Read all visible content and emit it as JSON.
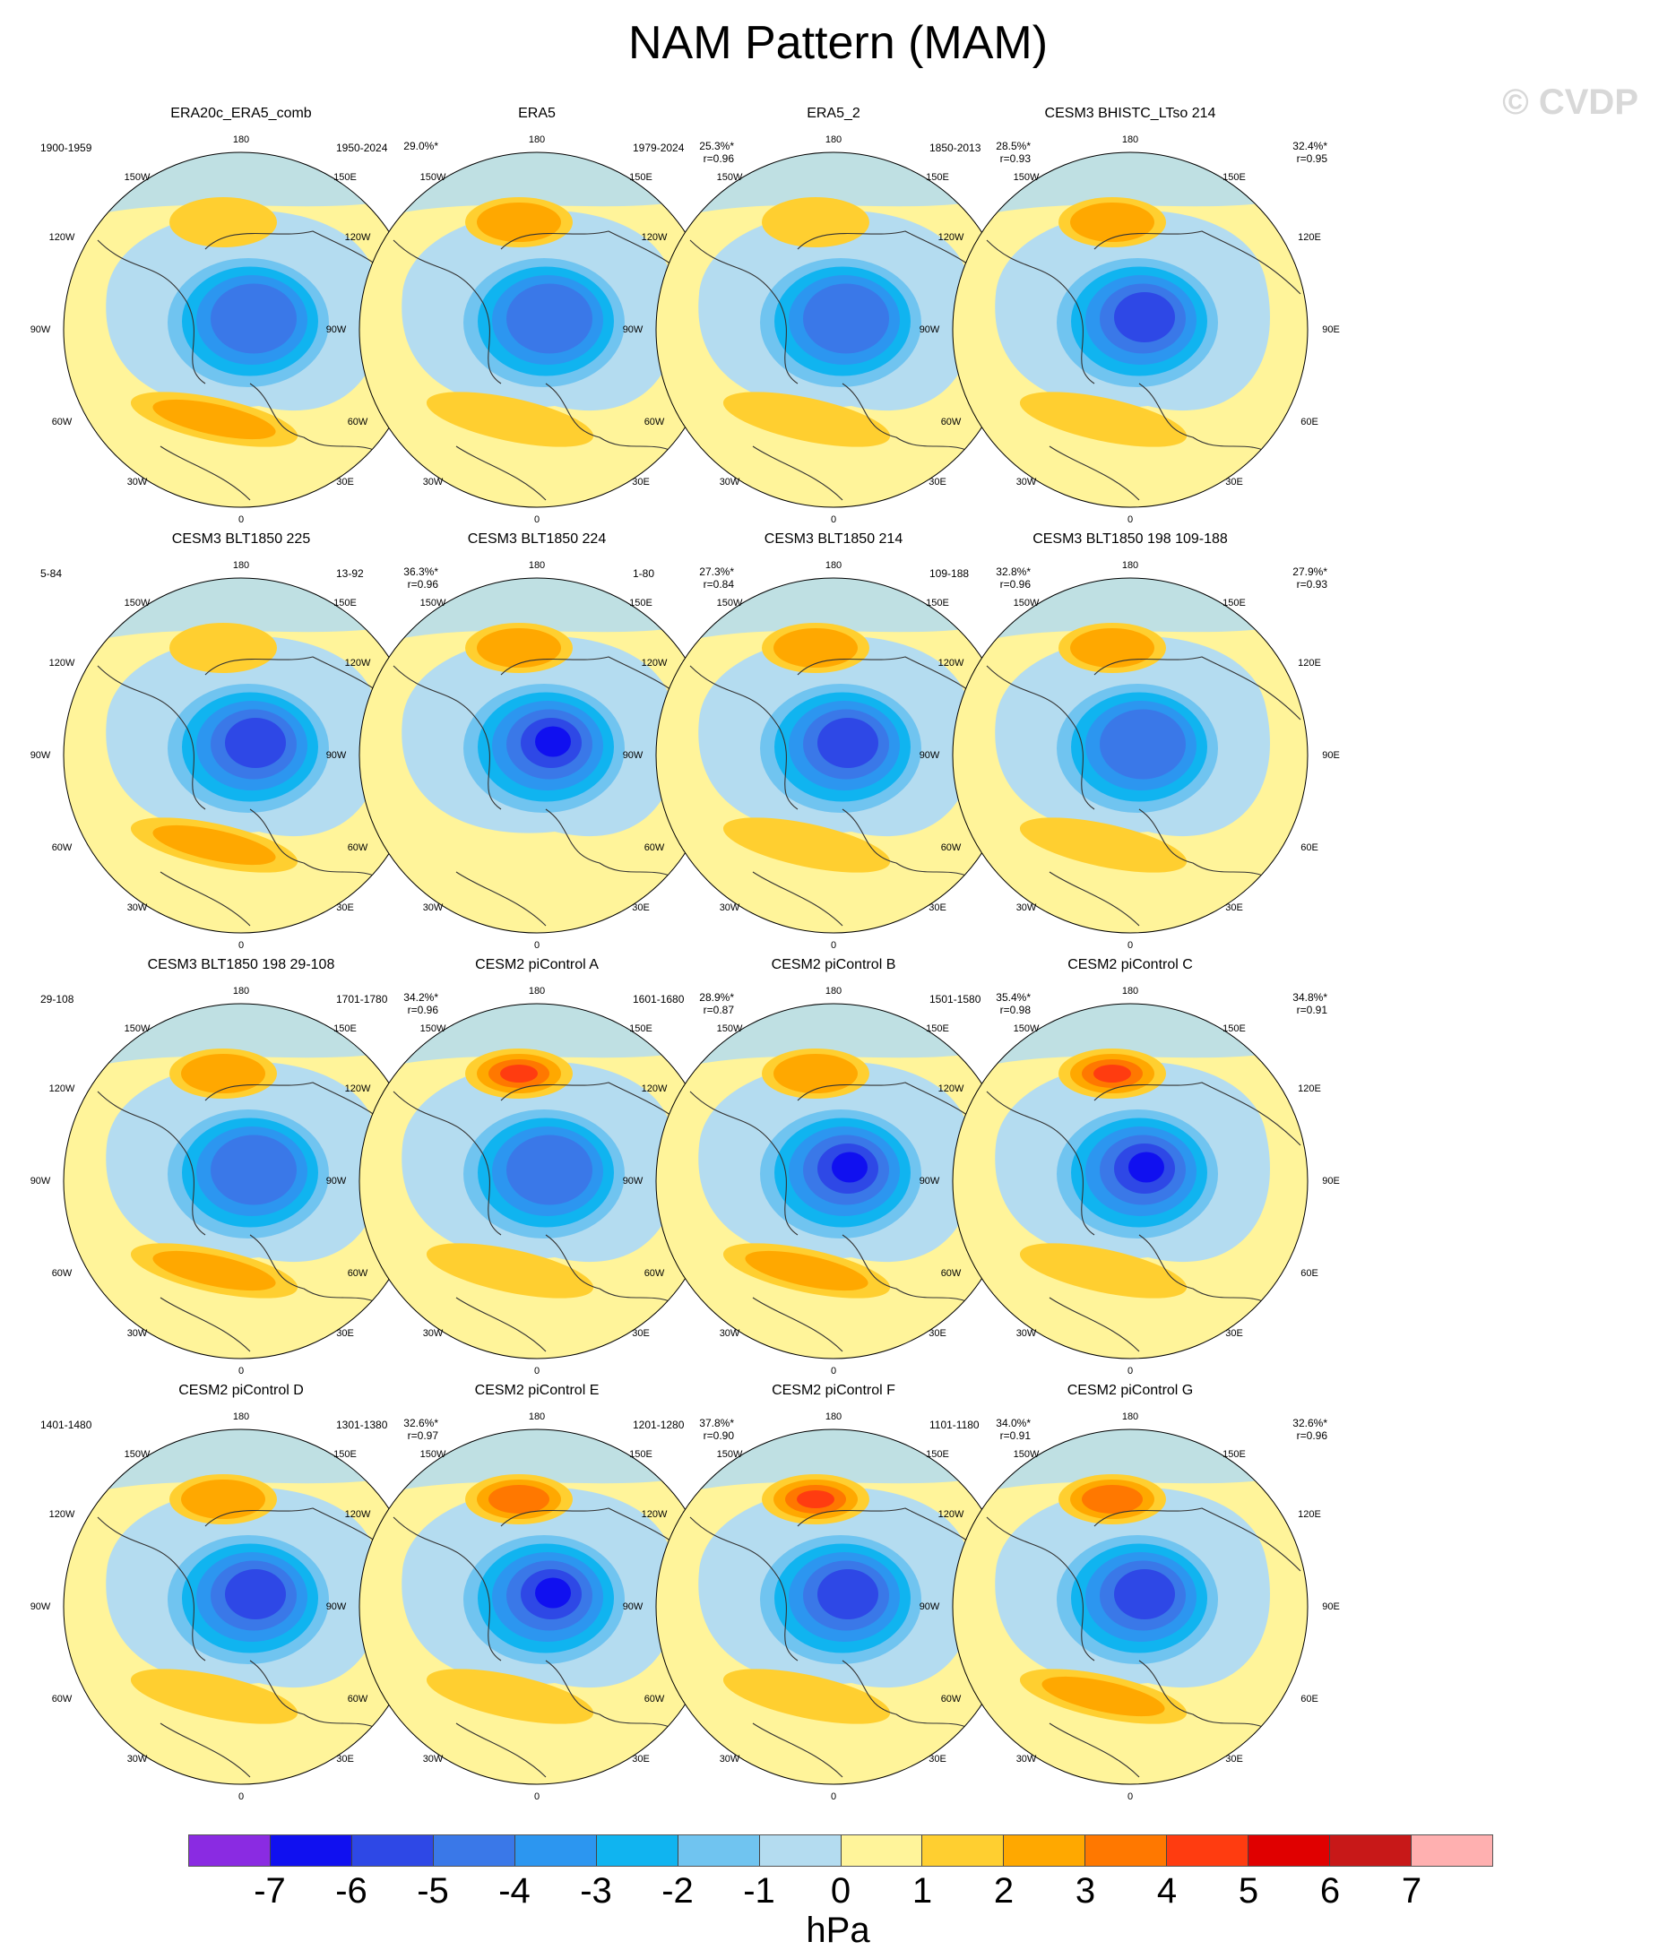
{
  "title": "NAM Pattern (MAM)",
  "watermark": "© CVDP",
  "map_labels": {
    "top": "180",
    "bottom": "0",
    "top_left": "150W",
    "top_right": "150E",
    "upper_left": "120W",
    "upper_right": "120E",
    "left": "90W",
    "right": "90E",
    "lower_left": "60W",
    "lower_right": "60E",
    "bottom_left": "30W",
    "bottom_right": "30E"
  },
  "panels": [
    {
      "title": "ERA20c_ERA5_comb",
      "period": "1900-1959",
      "pct": "29.0%*",
      "r": "",
      "low": -4,
      "pac": 1,
      "atl": 2
    },
    {
      "title": "ERA5",
      "period": "1950-2024",
      "pct": "25.3%*",
      "r": "r=0.96",
      "low": -4,
      "pac": 2,
      "atl": 1
    },
    {
      "title": "ERA5_2",
      "period": "1979-2024",
      "pct": "28.5%*",
      "r": "r=0.93",
      "low": -4,
      "pac": 1,
      "atl": 1
    },
    {
      "title": "CESM3 BHISTC_LTso 214",
      "period": "1850-2013",
      "pct": "32.4%*",
      "r": "r=0.95",
      "low": -5,
      "pac": 2,
      "atl": 1
    },
    {
      "title": "CESM3 BLT1850 225",
      "period": "5-84",
      "pct": "36.3%*",
      "r": "r=0.96",
      "low": -5,
      "pac": 1,
      "atl": 2
    },
    {
      "title": "CESM3 BLT1850 224",
      "period": "13-92",
      "pct": "27.3%*",
      "r": "r=0.84",
      "low": -6,
      "pac": 2,
      "atl": 0
    },
    {
      "title": "CESM3 BLT1850 214",
      "period": "1-80",
      "pct": "32.8%*",
      "r": "r=0.96",
      "low": -5,
      "pac": 2,
      "atl": 1
    },
    {
      "title": "CESM3 BLT1850 198 109-188",
      "period": "109-188",
      "pct": "27.9%*",
      "r": "r=0.93",
      "low": -4,
      "pac": 2,
      "atl": 1
    },
    {
      "title": "CESM3 BLT1850 198 29-108",
      "period": "29-108",
      "pct": "34.2%*",
      "r": "r=0.96",
      "low": -4,
      "pac": 2,
      "atl": 2
    },
    {
      "title": "CESM2 piControl A",
      "period": "1701-1780",
      "pct": "28.9%*",
      "r": "r=0.87",
      "low": -4,
      "pac": 4,
      "atl": 1
    },
    {
      "title": "CESM2 piControl B",
      "period": "1601-1680",
      "pct": "35.4%*",
      "r": "r=0.98",
      "low": -6,
      "pac": 2,
      "atl": 2
    },
    {
      "title": "CESM2 piControl C",
      "period": "1501-1580",
      "pct": "34.8%*",
      "r": "r=0.91",
      "low": -6,
      "pac": 4,
      "atl": 1
    },
    {
      "title": "CESM2 piControl D",
      "period": "1401-1480",
      "pct": "32.6%*",
      "r": "r=0.97",
      "low": -5,
      "pac": 2,
      "atl": 1
    },
    {
      "title": "CESM2 piControl E",
      "period": "1301-1380",
      "pct": "37.8%*",
      "r": "r=0.90",
      "low": -6,
      "pac": 3,
      "atl": 1
    },
    {
      "title": "CESM2 piControl F",
      "period": "1201-1280",
      "pct": "34.0%*",
      "r": "r=0.91",
      "low": -5,
      "pac": 4,
      "atl": 1
    },
    {
      "title": "CESM2 piControl G",
      "period": "1101-1180",
      "pct": "32.6%*",
      "r": "r=0.96",
      "low": -5,
      "pac": 3,
      "atl": 2
    }
  ],
  "colorbar": {
    "colors": [
      "#8a2be2",
      "#1010f0",
      "#2e48e6",
      "#3a78e8",
      "#2c96f0",
      "#10b4f0",
      "#70c4f0",
      "#b4dcf0",
      "#fff49a",
      "#ffcf30",
      "#ffa800",
      "#ff7800",
      "#ff3c10",
      "#e00000",
      "#c81818",
      "#ffb0b0"
    ],
    "ticks": [
      "-7",
      "-6",
      "-5",
      "-4",
      "-3",
      "-2",
      "-1",
      "0",
      "1",
      "2",
      "3",
      "4",
      "5",
      "6",
      "7"
    ],
    "units": "hPa"
  }
}
